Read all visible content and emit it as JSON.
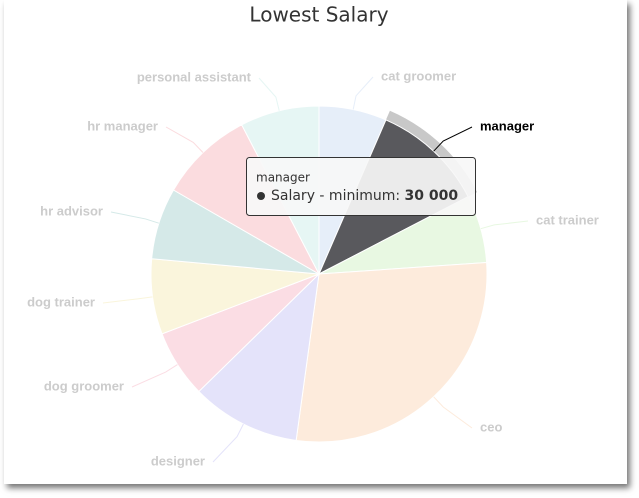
{
  "chart_data": {
    "type": "pie",
    "title": "Lowest Salary",
    "series_name": "Salary - minimum",
    "categories": [
      "cat groomer",
      "manager",
      "cat trainer",
      "ceo",
      "designer",
      "dog groomer",
      "dog trainer",
      "hr advisor",
      "hr manager",
      "personal assistant"
    ],
    "values": [
      18000,
      30000,
      18000,
      78000,
      29000,
      18000,
      20000,
      19000,
      25000,
      21000
    ],
    "value_labels": [
      null,
      "30 000",
      null,
      null,
      null,
      null,
      null,
      null,
      null,
      null
    ],
    "colors": [
      "#e6eef9",
      "#59595d",
      "#e8f8e2",
      "#fdebdc",
      "#e4e3fa",
      "#fbdde4",
      "#faf5dc",
      "#d5e9e8",
      "#fbdcdf",
      "#e6f6f4"
    ]
  }
}
